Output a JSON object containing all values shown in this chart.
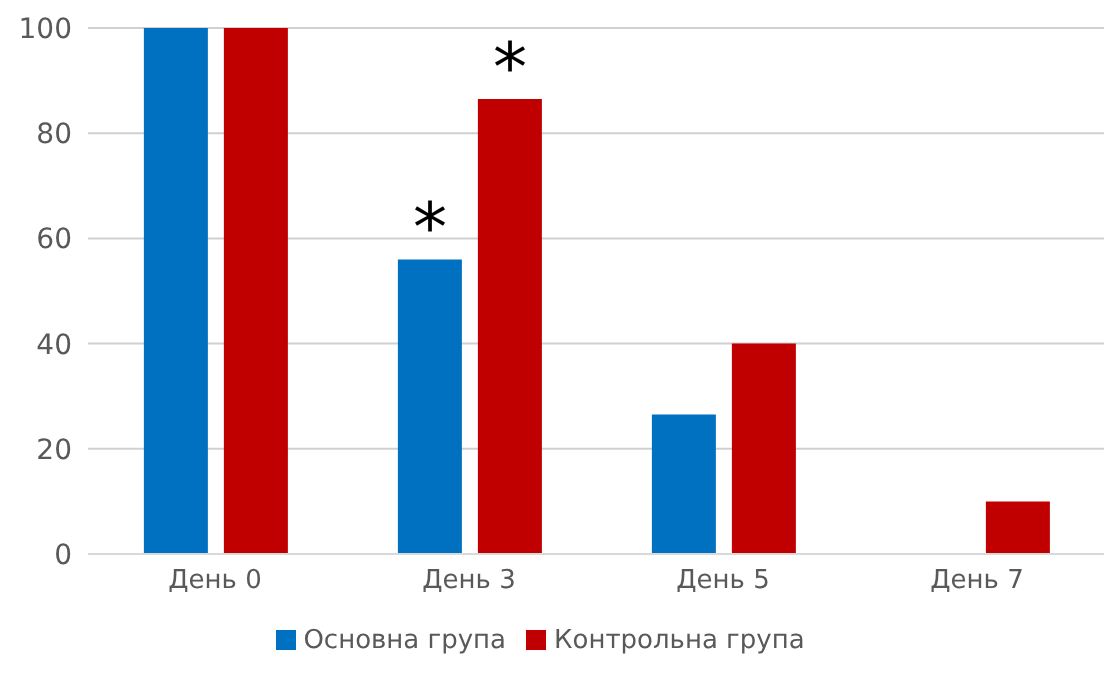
{
  "chart_data": {
    "type": "bar",
    "categories": [
      "День 0",
      "День 3",
      "День 5",
      "День 7"
    ],
    "series": [
      {
        "name": "Основна група",
        "color": "#0070c0",
        "values": [
          100,
          56,
          26.5,
          0
        ]
      },
      {
        "name": "Контрольна група",
        "color": "#c00000",
        "values": [
          100,
          86.5,
          40,
          10
        ]
      }
    ],
    "ylim": [
      0,
      100
    ],
    "yticks": [
      0,
      20,
      40,
      60,
      80,
      100
    ],
    "grid": "y",
    "legend": "bottom",
    "annotations": [
      {
        "text": "*",
        "x": "День 3",
        "y": 56
      },
      {
        "text": "*",
        "x": "День 3",
        "y": 86.5
      }
    ]
  }
}
